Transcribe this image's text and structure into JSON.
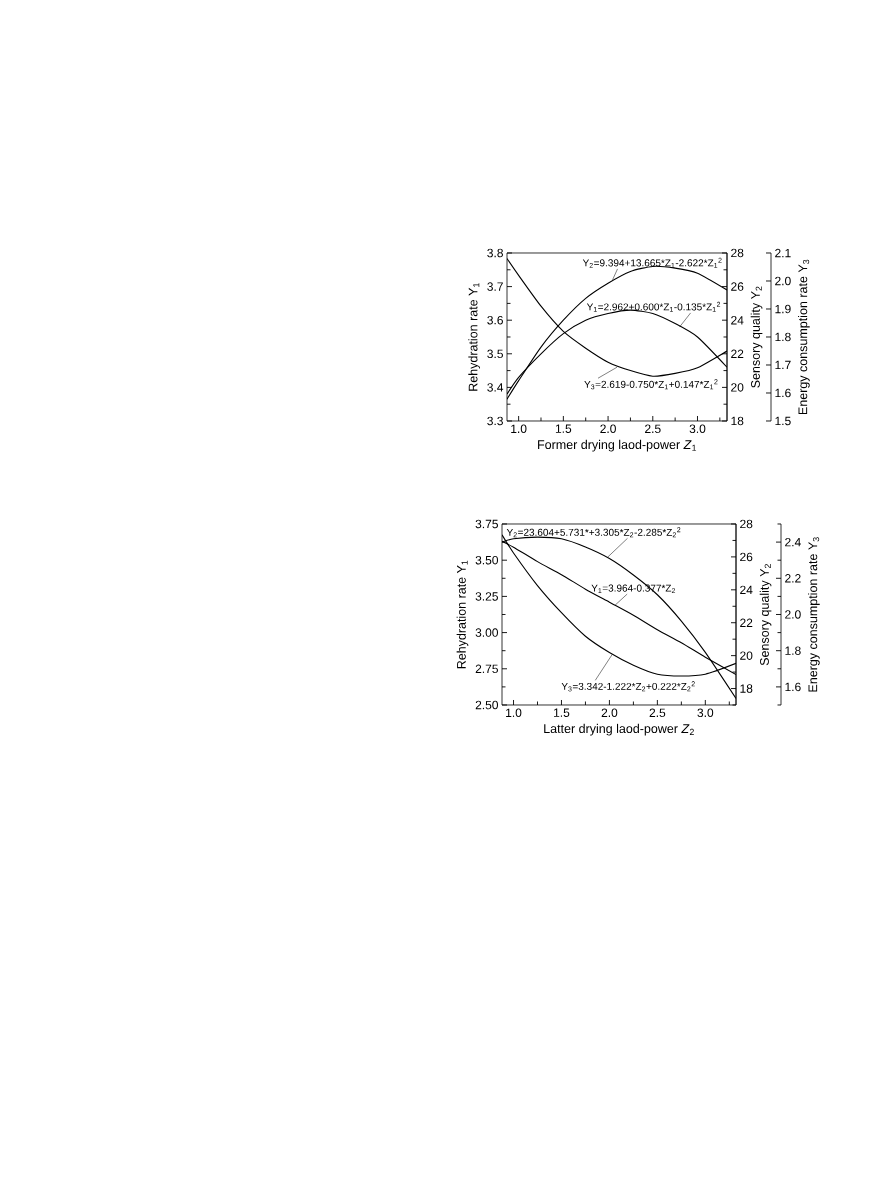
{
  "chart_data": [
    {
      "type": "line",
      "xlabel": "Former drying laod-power *Z*$_{1}$",
      "ylabel": "Rehydration rate  Y$_{1}$",
      "y2label": "Sensory quality Y$_{2}$",
      "y3label": "Energy consumption rate Y$_{3}$",
      "x": [
        0.87,
        1.0,
        1.25,
        1.5,
        1.75,
        2.0,
        2.25,
        2.5,
        2.75,
        3.0,
        3.33
      ],
      "series": [
        {
          "color": "#000000",
          "values": [
            3.38,
            3.43,
            3.5,
            3.56,
            3.6,
            3.62,
            3.63,
            3.62,
            3.59,
            3.55,
            3.46
          ]
        },
        {
          "color": "#000000",
          "axis": "y2",
          "values": [
            19.3,
            20.4,
            22.4,
            24.0,
            25.3,
            26.2,
            26.9,
            27.2,
            27.1,
            26.8,
            25.8
          ]
        },
        {
          "color": "#000000",
          "axis": "y3",
          "values": [
            2.08,
            2.02,
            1.91,
            1.82,
            1.76,
            1.71,
            1.68,
            1.66,
            1.67,
            1.69,
            1.75
          ]
        }
      ],
      "xlim": [
        0.87,
        3.33
      ],
      "xticks": [
        {
          "value": 1,
          "label": "1.0"
        },
        {
          "value": 1.25,
          "label": null
        },
        {
          "value": 1.5,
          "label": "1.5"
        },
        {
          "value": 1.75,
          "label": null
        },
        {
          "value": 2,
          "label": "2.0"
        },
        {
          "value": 2.25,
          "label": null
        },
        {
          "value": 2.5,
          "label": "2.5"
        },
        {
          "value": 2.75,
          "label": null
        },
        {
          "value": 3,
          "label": "3.0"
        },
        {
          "value": 3.25,
          "label": null
        }
      ],
      "ylim": [
        3.3,
        3.8
      ],
      "yticks": [
        3.3,
        {
          "value": 3.35,
          "label": null
        },
        3.4,
        {
          "value": 3.45,
          "label": null
        },
        3.5,
        {
          "value": 3.55,
          "label": null
        },
        3.6,
        {
          "value": 3.65,
          "label": null
        },
        3.7,
        {
          "value": 3.75,
          "label": null
        },
        3.8
      ],
      "y2lim": [
        18,
        28
      ],
      "y2ticks": [
        18,
        {
          "value": 19,
          "label": null
        },
        20,
        {
          "value": 21,
          "label": null
        },
        22,
        {
          "value": 23,
          "label": null
        },
        24,
        {
          "value": 25,
          "label": null
        },
        26,
        {
          "value": 27,
          "label": null
        },
        28
      ],
      "y3lim": [
        1.5,
        2.1
      ],
      "y3ticks": [
        1.5,
        1.6,
        1.7,
        1.8,
        1.9,
        {
          "value": 2,
          "label": "2.0"
        },
        2.1
      ],
      "annotations": [
        {
          "text": "Y$_{2}$=9.394+13.665*Z$_{1}$-2.622*Z$_{1}$$^{2}$",
          "x": 2.05,
          "y": 3.72
        },
        {
          "text": "Y$_{1}$=2.962+0.600*Z$_{1}$-0.135*Z$_{1}$$^{2}$",
          "x": 2.8,
          "y": 3.58
        },
        {
          "text": "Y$_{3}$=2.619-0.750*Z$_{1}$+0.147*Z$_{1}$$^{2}$",
          "x": 2.1,
          "y": 3.46
        }
      ]
    },
    {
      "type": "line",
      "xlabel": "Latter drying laod-power *Z*$_{2}$",
      "ylabel": "Rehydration rate  Y$_{1}$",
      "y2label": "Sensory quality Y$_{2}$",
      "y3label": "Energy consumption rate Y$_{3}$",
      "x": [
        0.88,
        1.0,
        1.25,
        1.5,
        1.75,
        2.0,
        2.25,
        2.5,
        2.75,
        3.0,
        3.32
      ],
      "series": [
        {
          "color": "#000000",
          "values": [
            3.63,
            3.59,
            3.49,
            3.4,
            3.3,
            3.21,
            3.12,
            3.02,
            2.93,
            2.83,
            2.71
          ]
        },
        {
          "color": "#000000",
          "axis": "y2",
          "values": [
            26.9,
            27.1,
            27.2,
            27.1,
            26.6,
            25.9,
            24.9,
            23.7,
            22.1,
            20.2,
            17.4
          ]
        },
        {
          "color": "#000000",
          "axis": "y3",
          "values": [
            2.44,
            2.34,
            2.16,
            2.01,
            1.88,
            1.79,
            1.72,
            1.67,
            1.66,
            1.67,
            1.73
          ]
        }
      ],
      "xlim": [
        0.88,
        3.32
      ],
      "xticks": [
        {
          "value": 1,
          "label": "1.0"
        },
        {
          "value": 1.25,
          "label": null
        },
        {
          "value": 1.5,
          "label": "1.5"
        },
        {
          "value": 1.75,
          "label": null
        },
        {
          "value": 2,
          "label": "2.0"
        },
        {
          "value": 2.25,
          "label": null
        },
        {
          "value": 2.5,
          "label": "2.5"
        },
        {
          "value": 2.75,
          "label": null
        },
        {
          "value": 3,
          "label": "3.0"
        },
        {
          "value": 3.25,
          "label": null
        }
      ],
      "ylim": [
        2.5,
        3.75
      ],
      "yticks": [
        {
          "value": 2.5,
          "label": "2.50"
        },
        {
          "value": 2.625,
          "label": null
        },
        2.75,
        {
          "value": 2.875,
          "label": null
        },
        {
          "value": 3,
          "label": "3.00"
        },
        {
          "value": 3.125,
          "label": null
        },
        3.25,
        {
          "value": 3.375,
          "label": null
        },
        {
          "value": 3.5,
          "label": "3.50"
        },
        {
          "value": 3.625,
          "label": null
        },
        3.75
      ],
      "y2lim": [
        17,
        28
      ],
      "y2ticks": [
        {
          "value": 17,
          "label": null
        },
        18,
        {
          "value": 19,
          "label": null
        },
        20,
        {
          "value": 21,
          "label": null
        },
        22,
        {
          "value": 23,
          "label": null
        },
        24,
        {
          "value": 25,
          "label": null
        },
        26,
        {
          "value": 27,
          "label": null
        },
        28
      ],
      "y3lim": [
        1.5,
        2.5
      ],
      "y3ticks": [
        {
          "value": 1.5,
          "label": null
        },
        1.6,
        {
          "value": 1.7,
          "label": null
        },
        1.8,
        {
          "value": 1.9,
          "label": null
        },
        {
          "value": 2,
          "label": "2.0"
        },
        {
          "value": 2.1,
          "label": null
        },
        2.2,
        {
          "value": 2.3,
          "label": null
        },
        2.4,
        {
          "value": 2.5,
          "label": null
        }
      ],
      "annotations": [
        {
          "text": "Y$_{2}$=23.604+5.731*+3.305*Z$_{2}$-2.285*Z$_{2}$$^{2}$",
          "x": 1.98,
          "y": 3.52
        },
        {
          "text": "Y$_{1}$=3.964-0.377*Z$_{2}$",
          "x": 2.06,
          "y": 3.19
        },
        {
          "text": "Y$_{3}$=3.342-1.222*Z$_{2}$+0.222*Z$_{2}$$^{2}$",
          "x": 2.03,
          "y": 2.85
        }
      ]
    }
  ]
}
